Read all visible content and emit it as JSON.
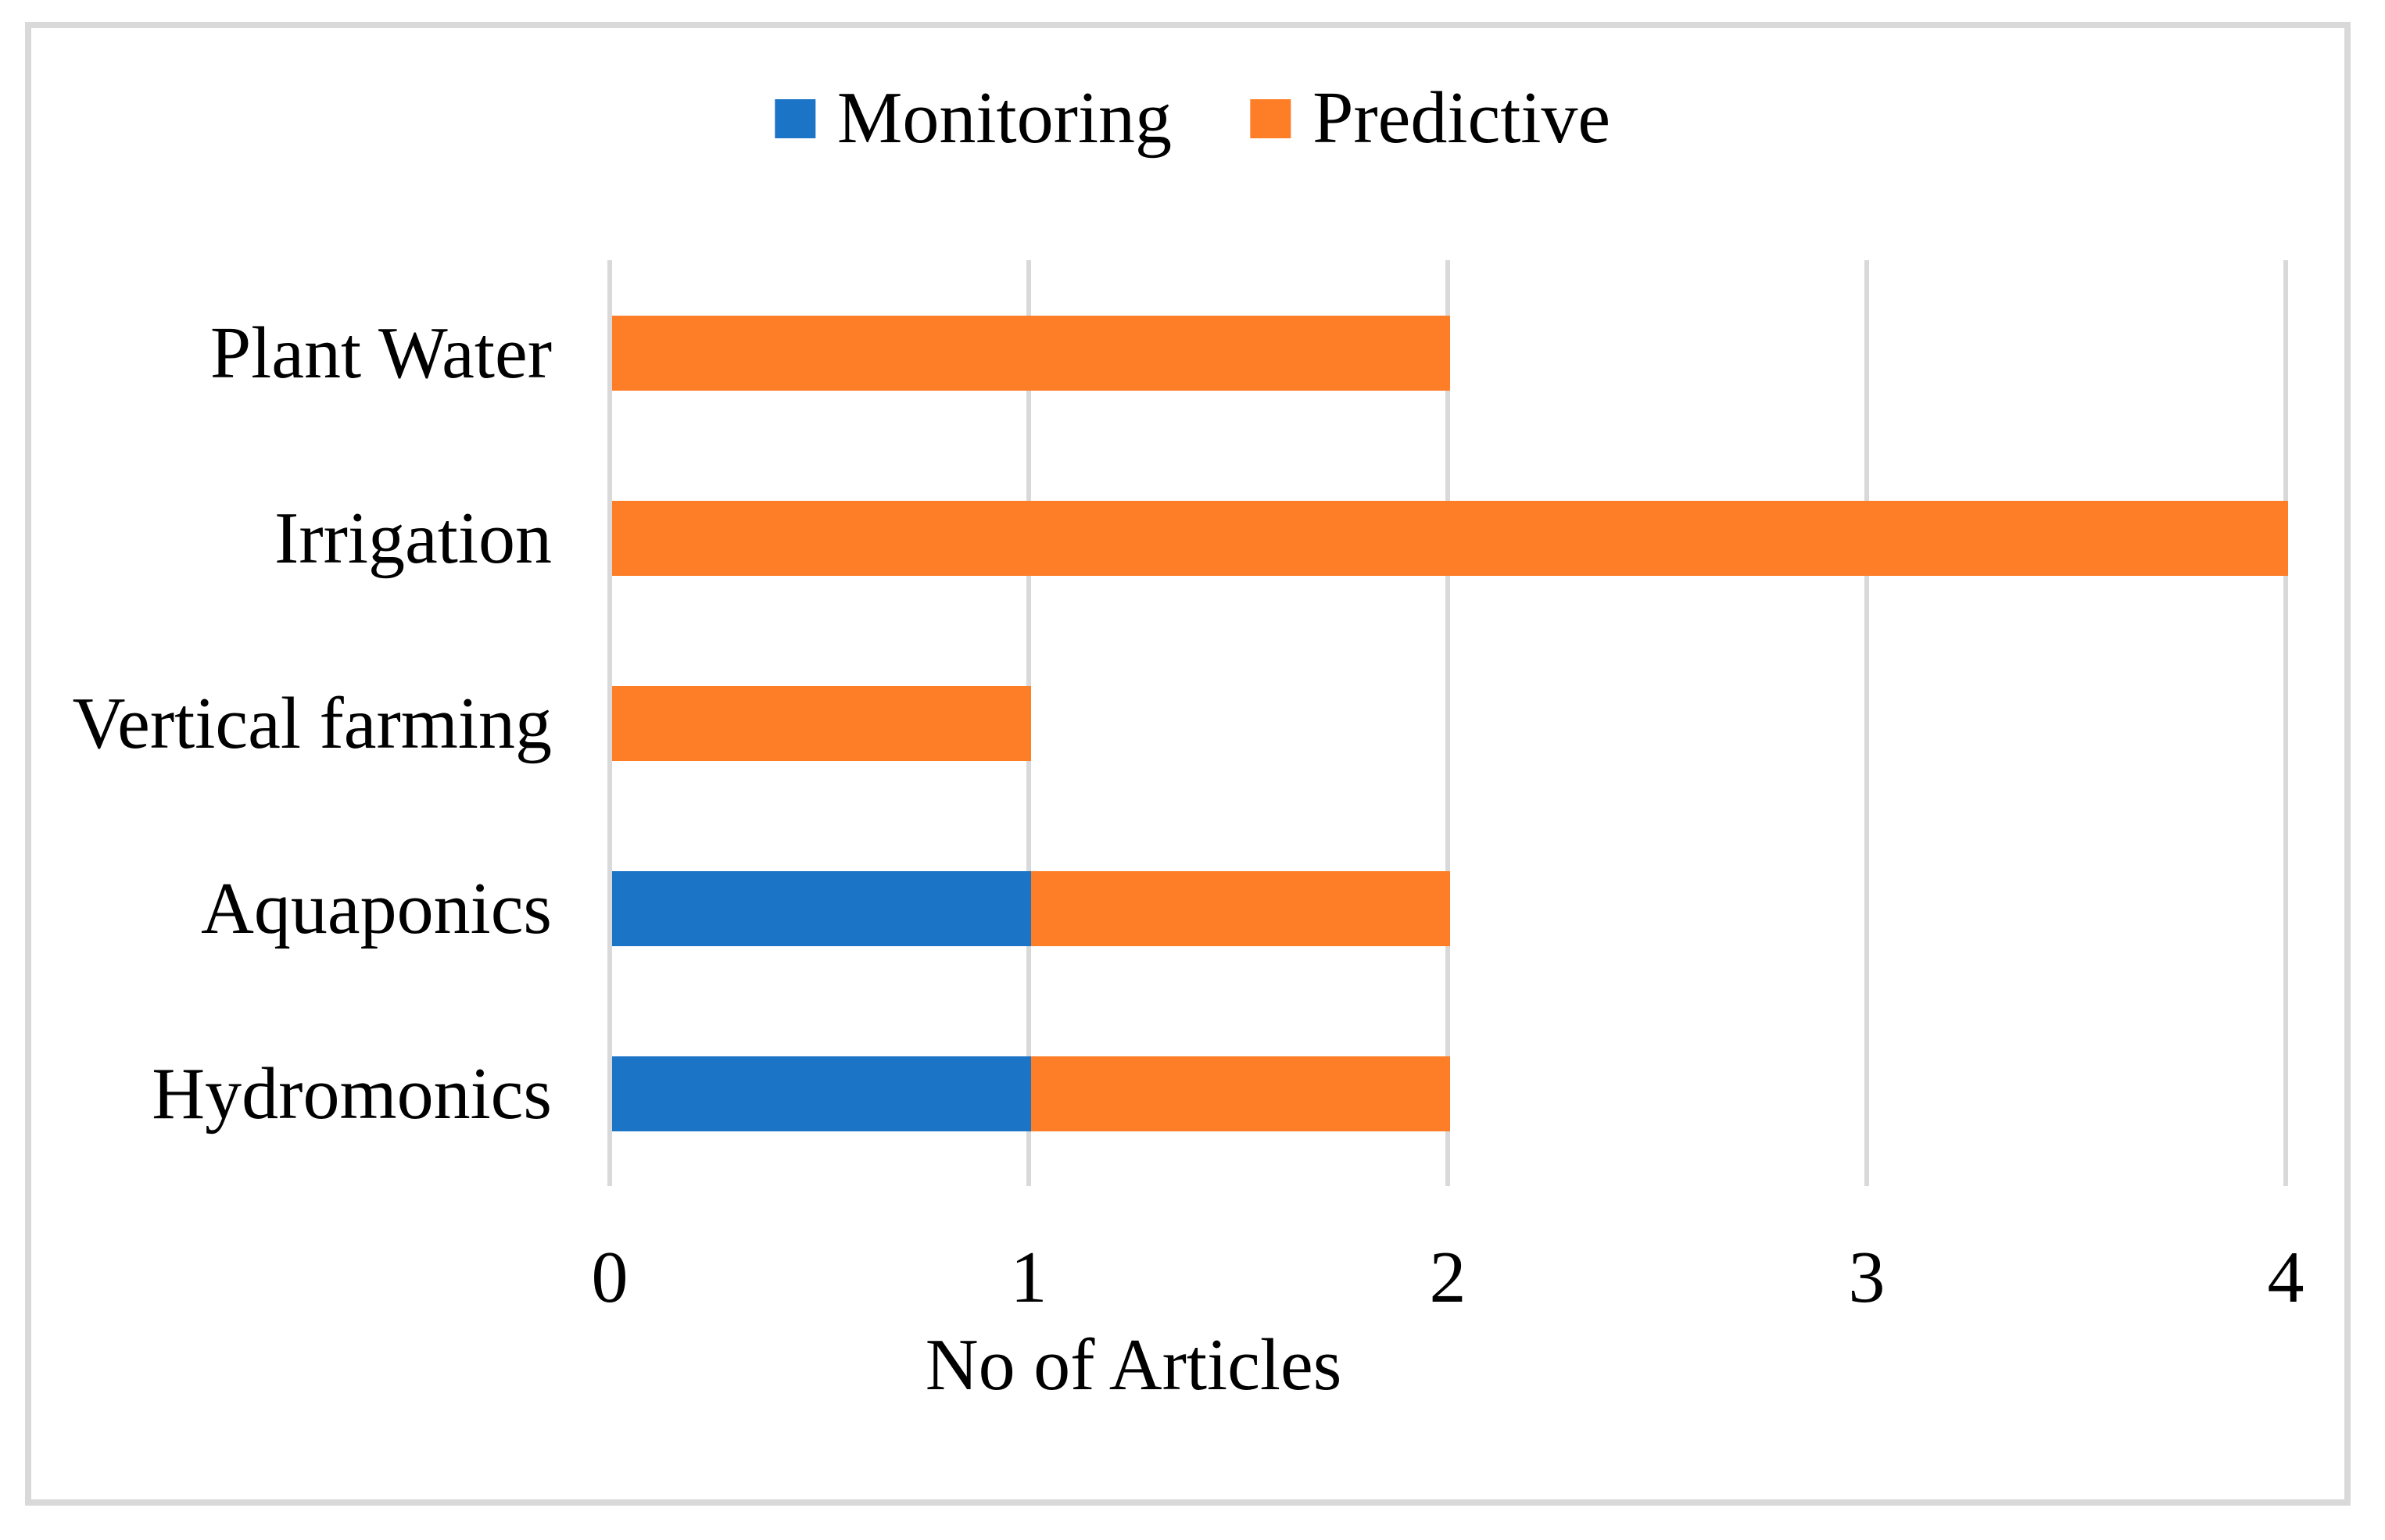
{
  "colors": {
    "monitoring_blue": "#1B74C5",
    "predictive_orange": "#FD7E26",
    "gridline_gray": "#D9D9D9",
    "frame_border_gray": "#D9D9D9",
    "text_black": "#000000",
    "background_white": "#FFFFFF"
  },
  "chart_data": {
    "type": "bar",
    "orientation": "horizontal",
    "stacked": true,
    "title": "",
    "xlabel": "No of Articles",
    "ylabel": "",
    "categories": [
      "Plant Water",
      "Irrigation",
      "Vertical farming",
      "Aquaponics",
      "Hydromonics"
    ],
    "series": [
      {
        "name": "Monitoring",
        "color": "#1B74C5",
        "values": [
          0,
          0,
          0,
          1,
          1
        ]
      },
      {
        "name": "Predictive",
        "color": "#FD7E26",
        "values": [
          2,
          4,
          1,
          1,
          1
        ]
      }
    ],
    "xlim": [
      0,
      4
    ],
    "xticks": [
      "0",
      "1",
      "2",
      "3",
      "4"
    ],
    "grid": "vertical-gridlines-only",
    "legend_position": "top-center"
  }
}
